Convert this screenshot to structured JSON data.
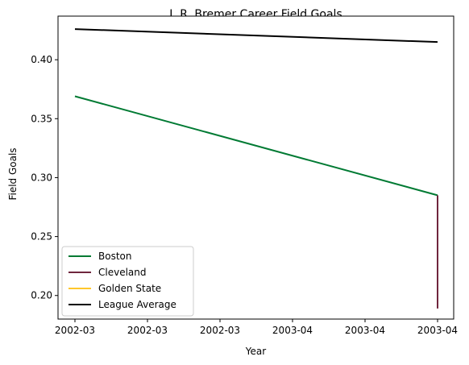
{
  "chart_data": {
    "type": "line",
    "title": "J. R. Bremer Career Field Goals",
    "xlabel": "Year",
    "ylabel": "Field Goals",
    "x_tick_labels": [
      "2002-03",
      "2002-03",
      "2002-03",
      "2003-04",
      "2003-04",
      "2003-04"
    ],
    "ylim": [
      0.18,
      0.437
    ],
    "y_ticks": [
      0.2,
      0.25,
      0.3,
      0.35,
      0.4
    ],
    "y_tick_labels": [
      "0.20",
      "0.25",
      "0.30",
      "0.35",
      "0.40"
    ],
    "legend_position": "lower-left",
    "grid": false,
    "series": [
      {
        "name": "Boston",
        "color": "#007a33",
        "points": [
          {
            "x": "2002-03",
            "y": 0.369
          },
          {
            "x": "2003-04",
            "y": 0.285
          }
        ]
      },
      {
        "name": "Cleveland",
        "color": "#6f263d",
        "points": [
          {
            "x": "2003-04",
            "y": 0.285
          },
          {
            "x": "2003-04",
            "y": 0.189
          }
        ]
      },
      {
        "name": "Golden State",
        "color": "#ffc72c",
        "points": []
      },
      {
        "name": "League Average",
        "color": "#000000",
        "points": [
          {
            "x": "2002-03",
            "y": 0.426
          },
          {
            "x": "2003-04",
            "y": 0.415
          }
        ]
      }
    ]
  }
}
